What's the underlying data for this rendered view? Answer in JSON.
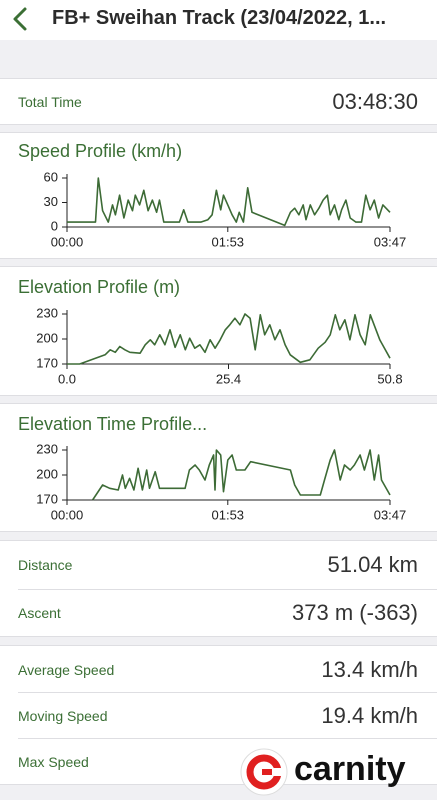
{
  "header": {
    "title": "FB+ Sweihan Track (23/04/2022, 1..."
  },
  "total_time": {
    "label": "Total Time",
    "value": "03:48:30"
  },
  "chart_data": [
    {
      "type": "line",
      "title": "Speed Profile (km/h)",
      "color": "#3d6b36",
      "x": [
        0,
        20,
        22,
        25,
        29,
        32,
        34,
        37,
        40,
        43,
        46,
        48,
        51,
        54,
        57,
        60,
        63,
        65,
        68,
        79,
        82,
        85,
        94,
        99,
        102,
        105,
        108,
        110,
        113,
        116,
        119,
        121,
        124,
        127,
        130,
        153,
        157,
        160,
        163,
        166,
        168,
        171,
        174,
        177,
        180,
        183,
        185,
        188,
        191,
        193,
        196,
        199,
        203,
        207,
        210,
        213,
        216,
        219,
        222,
        227
      ],
      "values": [
        6,
        6,
        60,
        20,
        6,
        27,
        15,
        39,
        11,
        33,
        20,
        39,
        27,
        45,
        20,
        33,
        18,
        33,
        6,
        6,
        21,
        6,
        6,
        9,
        15,
        45,
        21,
        39,
        27,
        15,
        6,
        18,
        6,
        48,
        18,
        2,
        18,
        23,
        15,
        27,
        9,
        27,
        15,
        23,
        33,
        39,
        15,
        27,
        9,
        21,
        33,
        11,
        6,
        6,
        39,
        21,
        33,
        11,
        27,
        18
      ],
      "xlim": [
        0,
        227
      ],
      "xticks": [
        {
          "value": 0,
          "label": "00:00"
        },
        {
          "value": 113,
          "label": "01:53"
        },
        {
          "value": 227,
          "label": "03:47"
        }
      ],
      "ylim": [
        0,
        60
      ],
      "yticks": [
        0,
        30,
        60
      ]
    },
    {
      "type": "line",
      "title": "Elevation Profile (m)",
      "color": "#3d6b36",
      "x": [
        0,
        2.0,
        6.0,
        6.8,
        7.6,
        8.3,
        9.1,
        9.9,
        11.5,
        12.3,
        13.1,
        13.8,
        14.6,
        15.4,
        16.2,
        17.0,
        17.8,
        18.6,
        19.3,
        20.1,
        20.9,
        21.7,
        22.5,
        23.3,
        24.1,
        24.9,
        25.6,
        26.4,
        27.2,
        28.0,
        28.8,
        29.6,
        30.4,
        31.1,
        31.9,
        32.7,
        33.5,
        34.3,
        35.1,
        36.7,
        38.2,
        39.5,
        40.6,
        41.4,
        42.2,
        42.9,
        43.7,
        44.5,
        45.3,
        46.1,
        46.9,
        47.7,
        49.2,
        50.8
      ],
      "values": [
        170,
        170,
        181,
        187,
        184,
        191,
        187,
        184,
        183,
        193,
        199,
        193,
        205,
        193,
        211,
        190,
        205,
        187,
        201,
        189,
        193,
        184,
        199,
        189,
        199,
        211,
        217,
        225,
        217,
        230,
        225,
        187,
        229,
        205,
        217,
        199,
        211,
        193,
        181,
        172,
        175,
        189,
        196,
        205,
        229,
        211,
        223,
        199,
        229,
        205,
        193,
        229,
        199,
        177
      ],
      "xlim": [
        0,
        50.8
      ],
      "xticks": [
        {
          "value": 0,
          "label": "0.0"
        },
        25.4,
        50.8
      ],
      "ylim": [
        170,
        230
      ],
      "yticks": [
        170,
        200,
        230
      ]
    },
    {
      "type": "line",
      "title": "Elevation Time Profile...",
      "color": "#3d6b36",
      "x": [
        18,
        25,
        30,
        36,
        39,
        41,
        44,
        47,
        50,
        53,
        56,
        58,
        62,
        65,
        83,
        86,
        90,
        93,
        97,
        100,
        103,
        104,
        105,
        108,
        110,
        113,
        116,
        119,
        125,
        129,
        157,
        160,
        164,
        178,
        181,
        185,
        188,
        192,
        195,
        199,
        202,
        206,
        209,
        213,
        216,
        219,
        221,
        227
      ],
      "values": [
        170,
        188,
        184,
        182,
        200,
        184,
        196,
        182,
        208,
        182,
        206,
        184,
        204,
        184,
        184,
        206,
        212,
        206,
        194,
        212,
        224,
        182,
        230,
        224,
        180,
        218,
        224,
        206,
        206,
        216,
        206,
        188,
        176,
        176,
        194,
        218,
        230,
        194,
        212,
        206,
        212,
        224,
        206,
        230,
        194,
        224,
        194,
        176
      ],
      "xlim": [
        0,
        227
      ],
      "xticks": [
        {
          "value": 0,
          "label": "00:00"
        },
        {
          "value": 113,
          "label": "01:53"
        },
        {
          "value": 227,
          "label": "03:47"
        }
      ],
      "ylim": [
        170,
        230
      ],
      "yticks": [
        170,
        200,
        230
      ]
    }
  ],
  "stats": [
    [
      {
        "label": "Distance",
        "value": "51.04 km"
      },
      {
        "label": "Ascent",
        "value": "373 m (-363)"
      }
    ],
    [
      {
        "label": "Average Speed",
        "value": "13.4 km/h"
      },
      {
        "label": "Moving Speed",
        "value": "19.4 km/h"
      },
      {
        "label": "Max Speed"
      }
    ]
  ],
  "watermark": "carnity"
}
